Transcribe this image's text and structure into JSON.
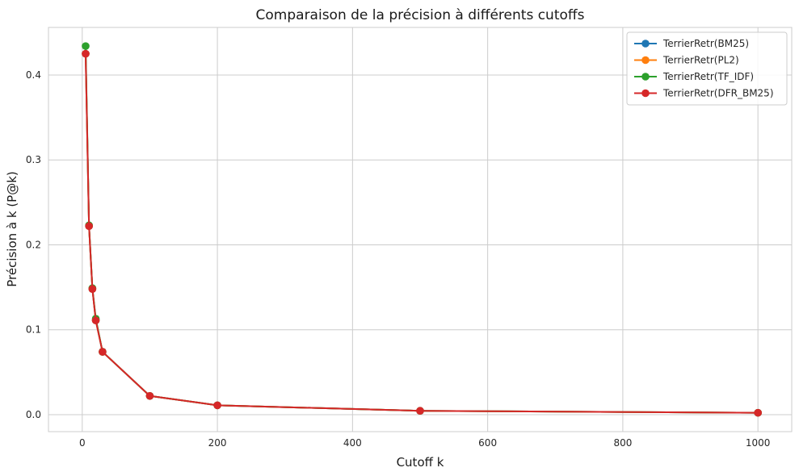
{
  "chart_data": {
    "type": "line",
    "title": "Comparaison de la précision à différents cutoffs",
    "xlabel": "Cutoff k",
    "ylabel": "Précision à k (P@k)",
    "xlim": [
      -50,
      1050
    ],
    "ylim": [
      -0.02,
      0.456
    ],
    "x_ticks": [
      0,
      200,
      400,
      600,
      800,
      1000
    ],
    "y_ticks": [
      0.0,
      0.1,
      0.2,
      0.3,
      0.4
    ],
    "x_tick_labels": [
      "0",
      "200",
      "400",
      "600",
      "800",
      "1000"
    ],
    "y_tick_labels": [
      "0.0",
      "0.1",
      "0.2",
      "0.3",
      "0.4"
    ],
    "grid": true,
    "legend_position": "top-right",
    "x": [
      5,
      10,
      15,
      20,
      30,
      100,
      200,
      500,
      1000
    ],
    "series": [
      {
        "name": "TerrierRetr(BM25)",
        "color": "#1f77b4",
        "values": [
          0.425,
          0.222,
          0.148,
          0.111,
          0.074,
          0.022,
          0.011,
          0.0045,
          0.0022
        ]
      },
      {
        "name": "TerrierRetr(PL2)",
        "color": "#ff7f0e",
        "values": [
          0.425,
          0.222,
          0.148,
          0.111,
          0.074,
          0.022,
          0.011,
          0.0045,
          0.0022
        ]
      },
      {
        "name": "TerrierRetr(TF_IDF)",
        "color": "#2ca02c",
        "values": [
          0.434,
          0.223,
          0.149,
          0.113,
          0.074,
          0.022,
          0.011,
          0.0045,
          0.0022
        ]
      },
      {
        "name": "TerrierRetr(DFR_BM25)",
        "color": "#d62728",
        "values": [
          0.425,
          0.222,
          0.148,
          0.111,
          0.074,
          0.022,
          0.011,
          0.0045,
          0.0022
        ]
      }
    ]
  }
}
